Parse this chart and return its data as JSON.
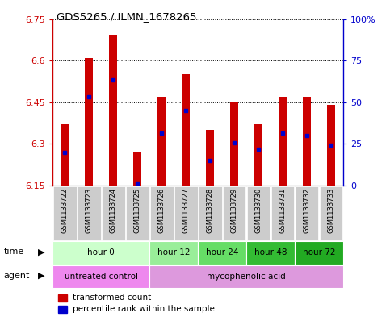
{
  "title": "GDS5265 / ILMN_1678265",
  "samples": [
    "GSM1133722",
    "GSM1133723",
    "GSM1133724",
    "GSM1133725",
    "GSM1133726",
    "GSM1133727",
    "GSM1133728",
    "GSM1133729",
    "GSM1133730",
    "GSM1133731",
    "GSM1133732",
    "GSM1133733"
  ],
  "bar_top": [
    6.37,
    6.61,
    6.69,
    6.27,
    6.47,
    6.55,
    6.35,
    6.45,
    6.37,
    6.47,
    6.47,
    6.44
  ],
  "bar_bottom": [
    6.15,
    6.15,
    6.15,
    6.15,
    6.15,
    6.15,
    6.15,
    6.15,
    6.15,
    6.15,
    6.15,
    6.15
  ],
  "blue_dot_y": [
    6.27,
    6.47,
    6.53,
    6.155,
    6.34,
    6.42,
    6.24,
    6.305,
    6.28,
    6.34,
    6.33,
    6.295
  ],
  "ylim_left": [
    6.15,
    6.75
  ],
  "ylim_right": [
    0,
    100
  ],
  "yticks_left": [
    6.15,
    6.3,
    6.45,
    6.6,
    6.75
  ],
  "ytick_labels_left": [
    "6.15",
    "6.3",
    "6.45",
    "6.6",
    "6.75"
  ],
  "yticks_right": [
    0,
    25,
    50,
    75,
    100
  ],
  "ytick_labels_right": [
    "0",
    "25",
    "50",
    "75",
    "100%"
  ],
  "bar_color": "#cc0000",
  "blue_dot_color": "#0000cc",
  "time_groups": [
    {
      "label": "hour 0",
      "start": 0,
      "end": 4,
      "color": "#ccffcc"
    },
    {
      "label": "hour 12",
      "start": 4,
      "end": 6,
      "color": "#99ee99"
    },
    {
      "label": "hour 24",
      "start": 6,
      "end": 8,
      "color": "#66dd66"
    },
    {
      "label": "hour 48",
      "start": 8,
      "end": 10,
      "color": "#33bb33"
    },
    {
      "label": "hour 72",
      "start": 10,
      "end": 12,
      "color": "#22aa22"
    }
  ],
  "agent_groups": [
    {
      "label": "untreated control",
      "start": 0,
      "end": 4,
      "color": "#ee88ee"
    },
    {
      "label": "mycophenolic acid",
      "start": 4,
      "end": 12,
      "color": "#dd99dd"
    }
  ],
  "legend_red_label": "transformed count",
  "legend_blue_label": "percentile rank within the sample",
  "time_label": "time",
  "agent_label": "agent",
  "axis_color_left": "#cc0000",
  "axis_color_right": "#0000cc",
  "sample_bg_color": "#cccccc",
  "bar_width": 0.35,
  "fig_width": 4.83,
  "fig_height": 3.93,
  "fig_dpi": 100
}
